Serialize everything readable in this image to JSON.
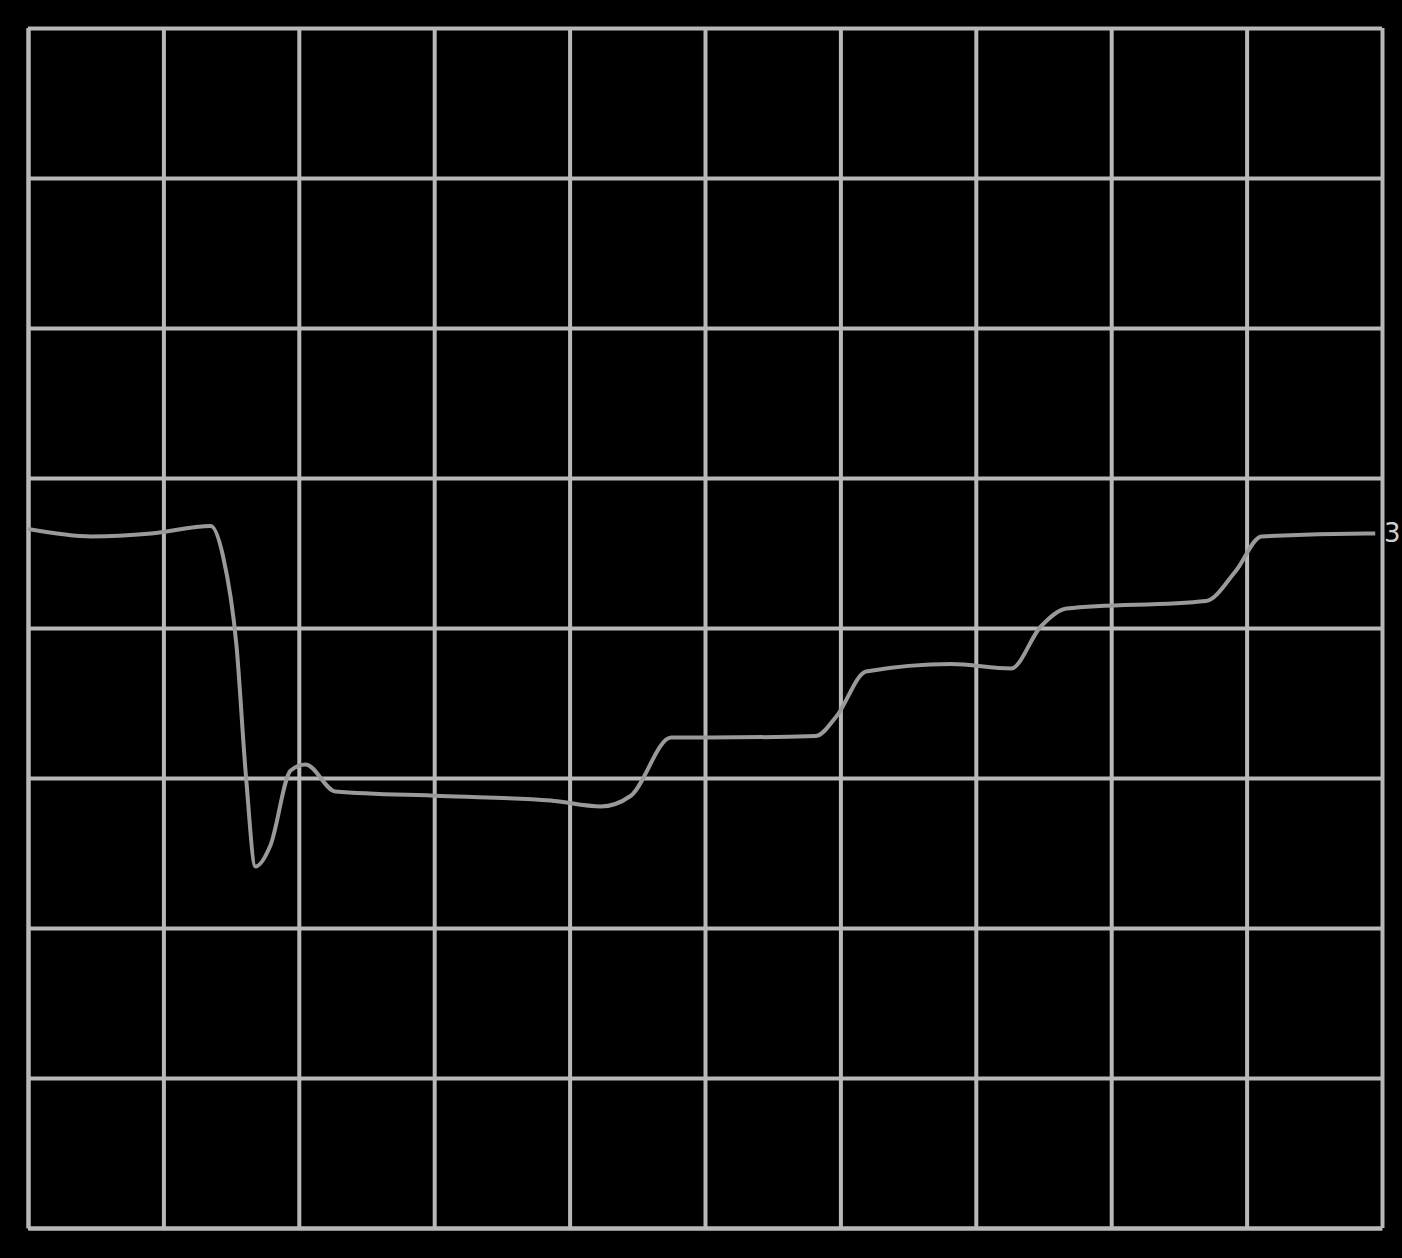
{
  "chart_data": {
    "type": "line",
    "x": [
      -5.0,
      -4.53,
      -4.09,
      -3.65,
      -3.56,
      -3.46,
      -3.39,
      -3.32,
      -3.21,
      -3.06,
      -2.95,
      -2.73,
      -1.95,
      -1.14,
      -0.77,
      -0.55,
      -0.25,
      0.04,
      0.82,
      0.97,
      1.19,
      1.82,
      2.26,
      2.48,
      2.67,
      3.7,
      3.92,
      4.11,
      4.88,
      4.95
    ],
    "values": [
      0.66,
      0.61,
      0.63,
      0.68,
      0.48,
      -0.12,
      -0.99,
      -1.59,
      -1.45,
      -0.95,
      -0.91,
      -1.09,
      -1.12,
      -1.15,
      -1.19,
      -1.12,
      -0.73,
      -0.73,
      -0.72,
      -0.59,
      -0.29,
      -0.24,
      -0.27,
      0.01,
      0.13,
      0.18,
      0.38,
      0.61,
      0.63,
      0.63
    ],
    "color": "#9a9a9a",
    "xlim": [
      -5,
      5
    ],
    "ylim": [
      -4,
      4
    ],
    "xticks": [
      -5,
      -4,
      -3,
      -2,
      -1,
      0,
      1,
      2,
      3,
      4,
      5
    ],
    "yticks": [
      -4,
      -3,
      -2,
      -1,
      0,
      1,
      2,
      3,
      4
    ],
    "grid": true,
    "tick_labels": false,
    "annotations": [
      "3"
    ]
  }
}
